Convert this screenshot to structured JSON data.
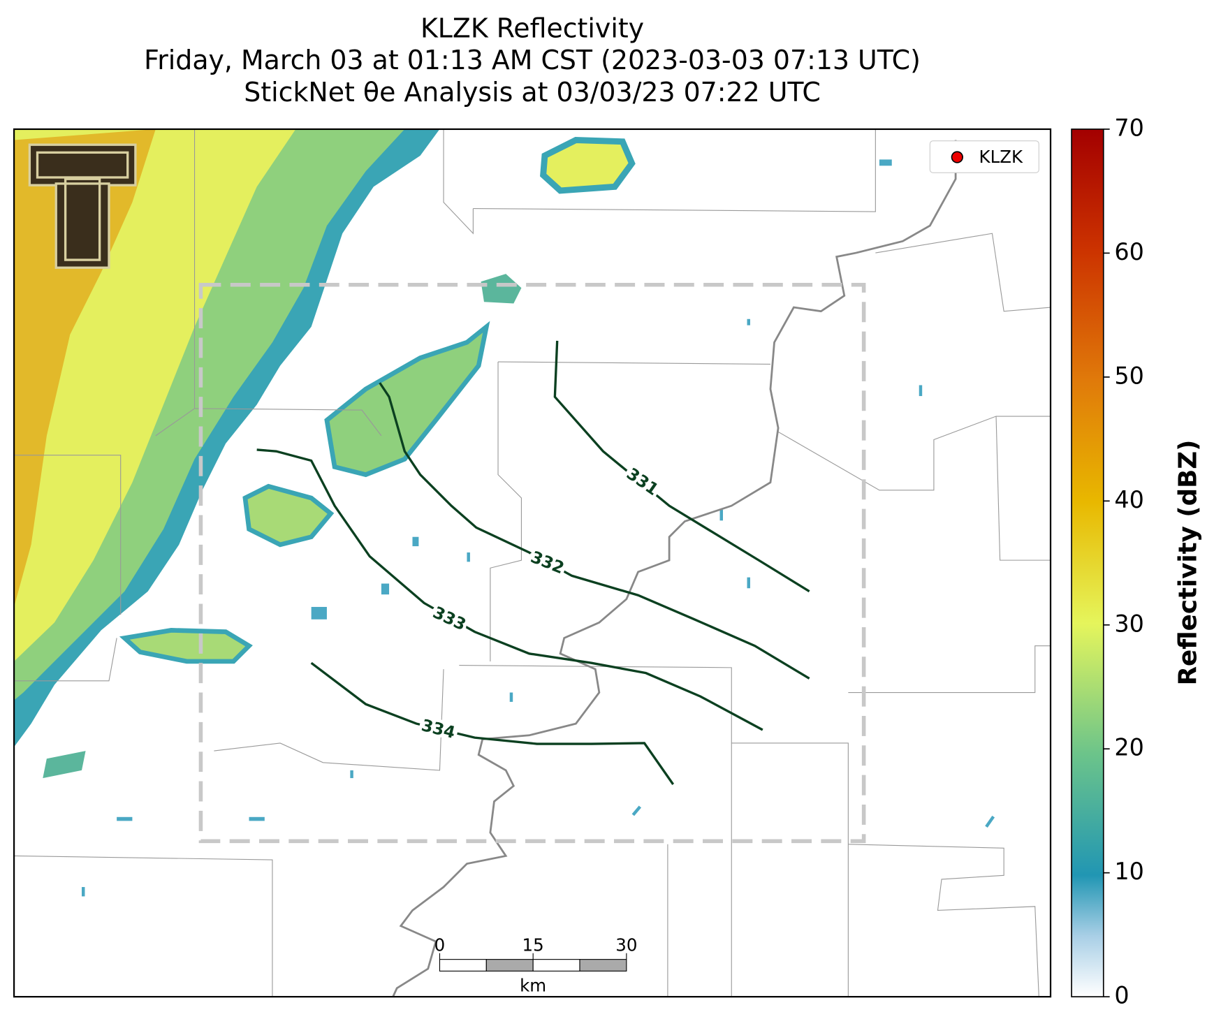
{
  "title": [
    "KLZK Reflectivity",
    "Friday, March 03 at 01:13 AM CST (2023-03-03 07:13 UTC)",
    "StickNet θe Analysis at 03/03/23 07:22 UTC"
  ],
  "legend": {
    "label": "KLZK"
  },
  "contours": {
    "values": [
      331,
      332,
      333,
      334
    ]
  },
  "colorbar": {
    "label": "Reflectivity (dBZ)",
    "lim": [
      0,
      70
    ],
    "ticks": [
      0,
      10,
      20,
      30,
      40,
      50,
      60,
      70
    ]
  },
  "scale_bar": {
    "ticks": [
      0,
      15,
      30
    ],
    "unit": "km"
  }
}
